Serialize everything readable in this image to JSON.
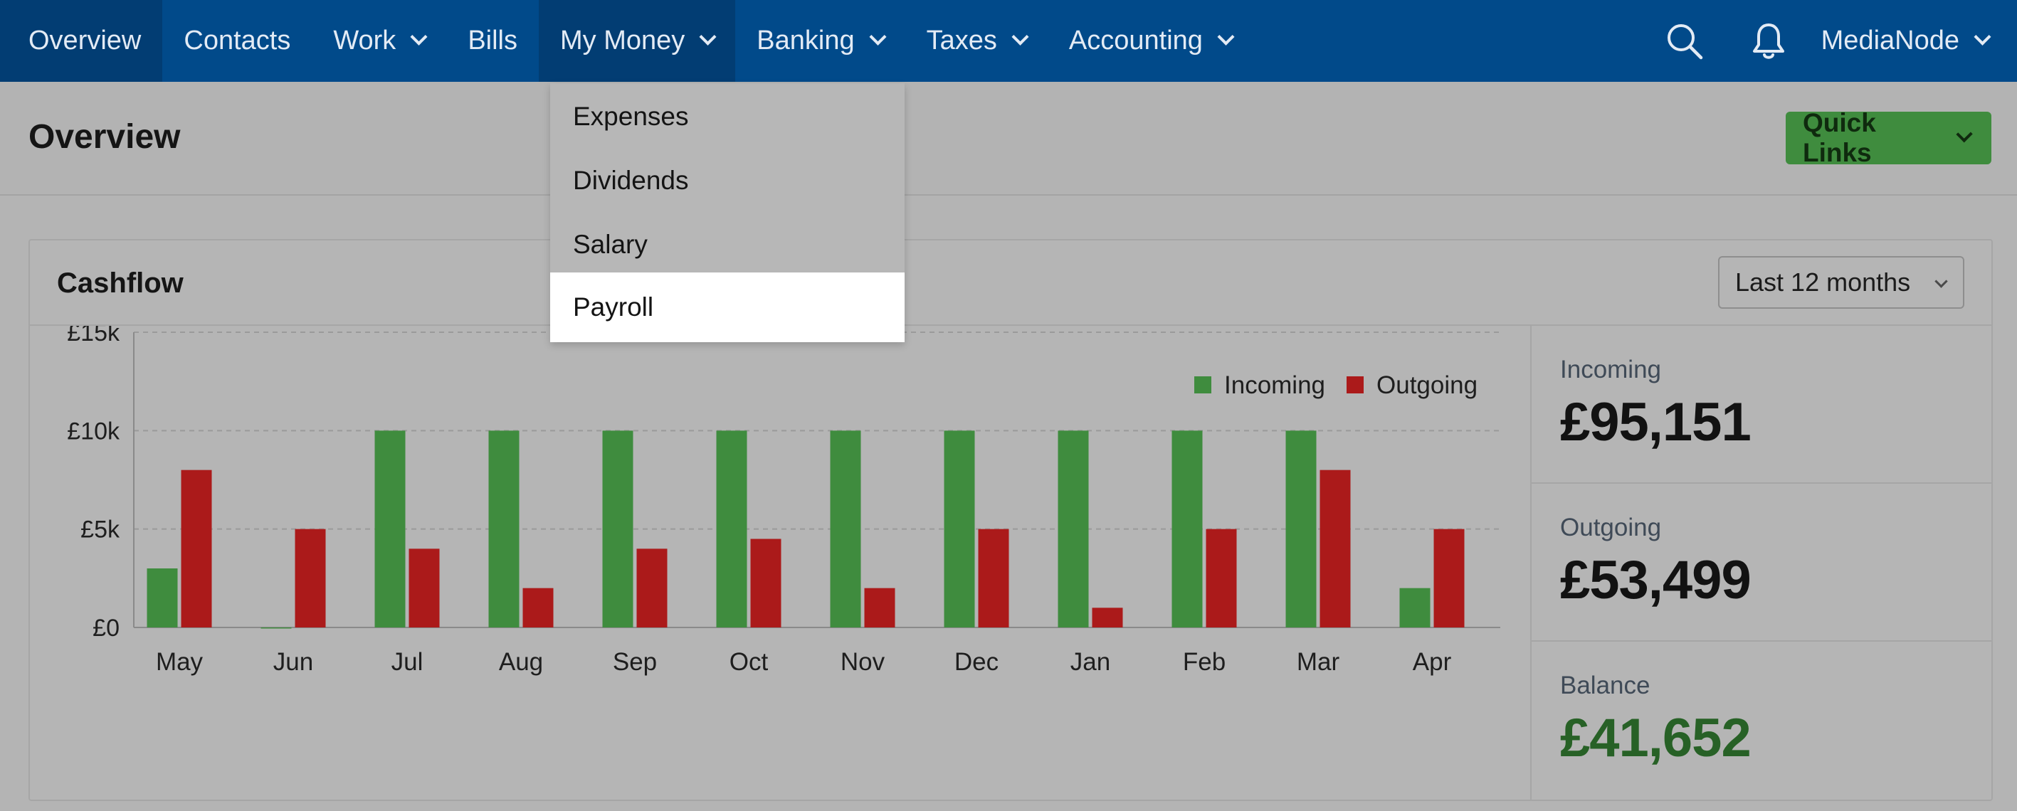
{
  "nav": {
    "items": [
      {
        "label": "Overview",
        "dropdown": false
      },
      {
        "label": "Contacts",
        "dropdown": false
      },
      {
        "label": "Work",
        "dropdown": true
      },
      {
        "label": "Bills",
        "dropdown": false
      },
      {
        "label": "My Money",
        "dropdown": true
      },
      {
        "label": "Banking",
        "dropdown": true
      },
      {
        "label": "Taxes",
        "dropdown": true
      },
      {
        "label": "Accounting",
        "dropdown": true
      }
    ],
    "account": "MediaNode",
    "icons": [
      "search-icon",
      "bell-icon"
    ]
  },
  "page": {
    "title": "Overview",
    "quick_links": "Quick Links"
  },
  "dropdown": {
    "parent": "My Money",
    "items": [
      "Expenses",
      "Dividends",
      "Salary",
      "Payroll"
    ],
    "highlighted": "Payroll"
  },
  "cashflow": {
    "title": "Cashflow",
    "range": "Last 12 months",
    "summary": {
      "incoming_label": "Incoming",
      "incoming_value": "£95,151",
      "outgoing_label": "Outgoing",
      "outgoing_value": "£53,499",
      "balance_label": "Balance",
      "balance_value": "£41,652"
    }
  },
  "colors": {
    "nav_bg": "#014a8a",
    "incoming": "#3f8c3e",
    "outgoing": "#ab1a1a",
    "balance": "#276126"
  },
  "chart_data": {
    "type": "bar",
    "categories": [
      "May",
      "Jun",
      "Jul",
      "Aug",
      "Sep",
      "Oct",
      "Nov",
      "Dec",
      "Jan",
      "Feb",
      "Mar",
      "Apr"
    ],
    "series": [
      {
        "name": "Incoming",
        "color": "#3f8c3e",
        "values": [
          3000,
          0,
          10000,
          10000,
          10000,
          10000,
          10000,
          10000,
          10000,
          10000,
          10000,
          2000
        ]
      },
      {
        "name": "Outgoing",
        "color": "#ab1a1a",
        "values": [
          8000,
          5000,
          4000,
          2000,
          4000,
          4500,
          2000,
          5000,
          1000,
          5000,
          8000,
          5000
        ]
      }
    ],
    "yticks": [
      {
        "value": 0,
        "label": "£0"
      },
      {
        "value": 5000,
        "label": "£5k"
      },
      {
        "value": 10000,
        "label": "£10k"
      },
      {
        "value": 15000,
        "label": "£15k"
      }
    ],
    "ylim": [
      0,
      15000
    ],
    "grid": true,
    "legend": "top-right"
  }
}
